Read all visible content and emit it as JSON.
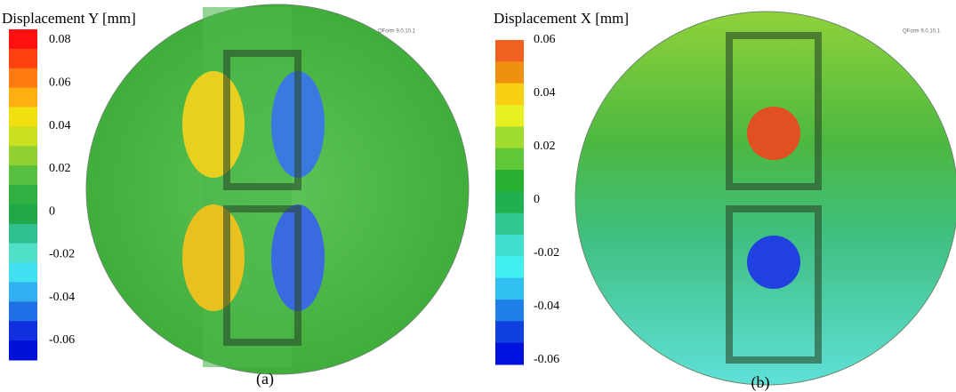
{
  "panels": [
    {
      "title": "Displacement Y  [mm]",
      "legend_labels": [
        "0.08",
        "0.06",
        "0.04",
        "0.02",
        "0",
        "-0.02",
        "-0.04",
        "-0.06"
      ],
      "watermark": "QForm 9.0.10.1",
      "caption": "(a)"
    },
    {
      "title": "Displacement X  [mm]",
      "legend_labels": [
        "0.06",
        "0.04",
        "0.02",
        "0",
        "-0.02",
        "-0.04",
        "-0.06"
      ],
      "watermark": "QForm 9.0.10.1",
      "caption": "(b)"
    }
  ]
}
